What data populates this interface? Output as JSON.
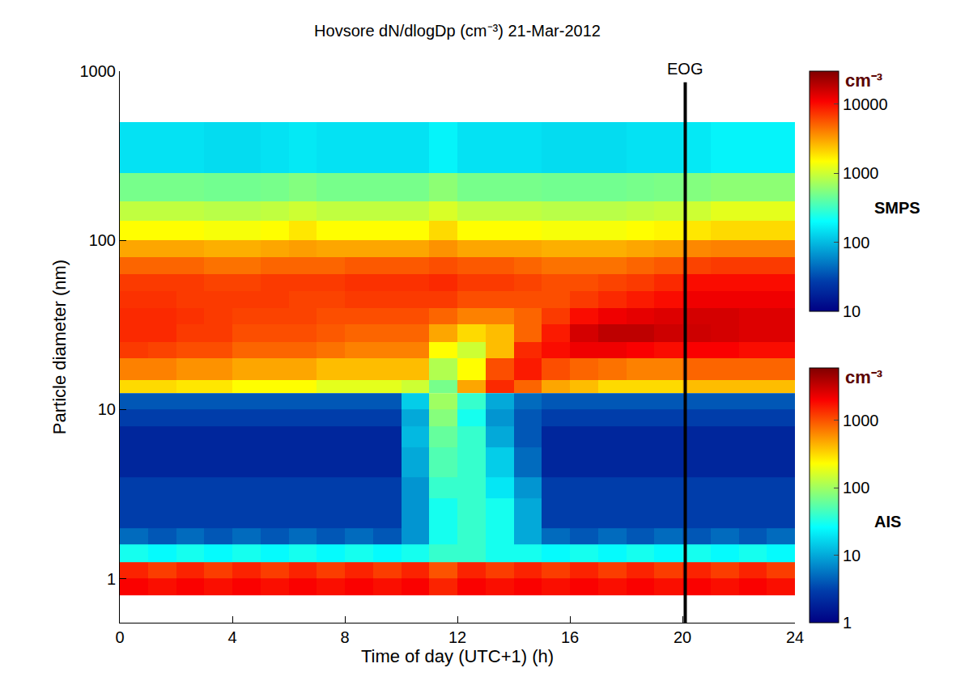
{
  "chart_data": {
    "type": "heatmap",
    "title": "Hovsore dN/dlogDp (cm⁻³) 21-Mar-2012",
    "x_label": "Time of day (UTC+1) (h)",
    "y_label": "Particle diameter (nm)",
    "xlim": [
      0,
      24
    ],
    "xticks": [
      0,
      4,
      8,
      12,
      16,
      20,
      24
    ],
    "ylim": [
      0.55,
      1000
    ],
    "yticks": [
      1,
      10,
      100,
      1000
    ],
    "log": "y",
    "grid": false,
    "annotations": [
      {
        "text": "EOG",
        "x": 20.1
      }
    ],
    "series": [
      {
        "name": "SMPS",
        "colorbar_title": "cm⁻³",
        "clim": [
          10,
          30000
        ],
        "cticks": [
          10,
          100,
          1000,
          10000
        ],
        "x_edges": [
          0,
          1,
          2,
          3,
          4,
          5,
          6,
          7,
          8,
          9,
          10,
          11,
          12,
          13,
          14,
          15,
          16,
          17,
          18,
          19,
          20,
          21,
          22,
          23,
          24
        ],
        "y_edges": [
          12.5,
          15,
          20,
          25,
          32,
          40,
          50,
          63,
          80,
          100,
          130,
          170,
          250,
          500
        ],
        "z": [
          [
            2000,
            2000,
            1800,
            1800,
            1500,
            1500,
            1500,
            1200,
            1200,
            1200,
            1000,
            500,
            3000,
            8000,
            5000,
            3000,
            2500,
            2000,
            2000,
            2000,
            2500,
            2500,
            2500,
            2500
          ],
          [
            4000,
            4000,
            3500,
            3500,
            3000,
            3000,
            3000,
            2500,
            2500,
            2500,
            2500,
            800,
            1500,
            6000,
            9000,
            6000,
            5000,
            4500,
            4000,
            4000,
            5000,
            5000,
            5000,
            5000
          ],
          [
            7000,
            6500,
            6000,
            6000,
            5000,
            5000,
            5000,
            4500,
            4000,
            4000,
            4000,
            1500,
            1000,
            2500,
            8000,
            10000,
            12000,
            12000,
            11000,
            10000,
            11000,
            11000,
            10000,
            10000
          ],
          [
            8000,
            8000,
            7000,
            7000,
            6000,
            6000,
            6000,
            5500,
            5000,
            5000,
            5000,
            3000,
            2000,
            2500,
            5000,
            9000,
            15000,
            18000,
            18000,
            16000,
            16000,
            15000,
            14000,
            14000
          ],
          [
            8000,
            8000,
            7500,
            7000,
            6500,
            6500,
            6500,
            6000,
            6000,
            6000,
            6000,
            5000,
            4000,
            4000,
            5000,
            7000,
            10000,
            12000,
            13000,
            14000,
            15000,
            15000,
            14000,
            14000
          ],
          [
            7500,
            7500,
            7000,
            7000,
            7000,
            7000,
            6500,
            6500,
            7000,
            7000,
            7000,
            7000,
            6000,
            6000,
            6000,
            6000,
            7000,
            8000,
            9000,
            10000,
            12000,
            12000,
            12000,
            12000
          ],
          [
            7000,
            7000,
            7000,
            6500,
            6500,
            7000,
            7000,
            7000,
            7500,
            7500,
            7500,
            8000,
            7000,
            7000,
            6500,
            6000,
            6000,
            6500,
            7000,
            8000,
            10000,
            10000,
            10000,
            10000
          ],
          [
            5000,
            5000,
            5000,
            4500,
            4500,
            5000,
            5000,
            5000,
            5500,
            5500,
            5500,
            6000,
            5500,
            5500,
            5000,
            4500,
            4500,
            4500,
            5000,
            5500,
            6500,
            7000,
            7000,
            7000
          ],
          [
            3000,
            3000,
            3000,
            2800,
            2800,
            3000,
            3200,
            3000,
            3000,
            3000,
            3000,
            3500,
            3000,
            3000,
            3000,
            2800,
            2800,
            2800,
            3000,
            3200,
            3800,
            4000,
            4000,
            4000
          ],
          [
            1500,
            1500,
            1500,
            1400,
            1400,
            1500,
            1800,
            1500,
            1500,
            1500,
            1500,
            2000,
            1500,
            1500,
            1500,
            1400,
            1400,
            1400,
            1500,
            1600,
            1800,
            2000,
            2000,
            2000
          ],
          [
            900,
            900,
            900,
            850,
            850,
            900,
            1000,
            900,
            900,
            900,
            900,
            1100,
            900,
            900,
            900,
            850,
            850,
            850,
            900,
            950,
            1000,
            1200,
            1200,
            1200
          ],
          [
            500,
            500,
            500,
            480,
            480,
            500,
            550,
            500,
            500,
            500,
            500,
            600,
            500,
            500,
            500,
            480,
            480,
            480,
            500,
            520,
            550,
            600,
            600,
            600
          ],
          [
            150,
            150,
            150,
            140,
            140,
            150,
            160,
            150,
            150,
            150,
            150,
            180,
            150,
            150,
            150,
            140,
            140,
            140,
            150,
            150,
            160,
            180,
            180,
            180
          ]
        ]
      },
      {
        "name": "AIS",
        "colorbar_title": "cm⁻³",
        "clim": [
          1,
          6000
        ],
        "cticks": [
          1,
          10,
          100,
          1000
        ],
        "x_edges": [
          0,
          1,
          2,
          3,
          4,
          5,
          6,
          7,
          8,
          9,
          10,
          11,
          12,
          13,
          14,
          15,
          16,
          17,
          18,
          19,
          20,
          21,
          22,
          23,
          24
        ],
        "y_edges": [
          0.8,
          1.0,
          1.25,
          1.6,
          2,
          3,
          4,
          6,
          8,
          10,
          12.5
        ],
        "z": [
          [
            2000,
            1800,
            2000,
            1800,
            2000,
            1800,
            2000,
            1800,
            2000,
            1800,
            2000,
            1500,
            2000,
            1800,
            2000,
            1800,
            2000,
            1800,
            2000,
            1800,
            2000,
            1800,
            2000,
            1800
          ],
          [
            1500,
            1200,
            1500,
            1200,
            1500,
            1200,
            1500,
            1200,
            1500,
            1200,
            1500,
            1000,
            1500,
            1200,
            1500,
            1200,
            1500,
            1200,
            1500,
            1200,
            1500,
            1200,
            1500,
            1200
          ],
          [
            30,
            25,
            30,
            25,
            30,
            25,
            30,
            25,
            30,
            25,
            30,
            40,
            40,
            30,
            30,
            25,
            30,
            25,
            30,
            25,
            30,
            25,
            30,
            25
          ],
          [
            5,
            4,
            5,
            4,
            5,
            4,
            5,
            4,
            5,
            4,
            8,
            30,
            40,
            30,
            10,
            5,
            4,
            5,
            4,
            5,
            4,
            5,
            4,
            5
          ],
          [
            3,
            3,
            3,
            3,
            3,
            3,
            3,
            3,
            3,
            3,
            8,
            30,
            40,
            30,
            10,
            3,
            3,
            3,
            3,
            3,
            3,
            3,
            3,
            3
          ],
          [
            3,
            3,
            3,
            3,
            3,
            3,
            3,
            3,
            3,
            3,
            8,
            40,
            40,
            20,
            8,
            3,
            3,
            3,
            3,
            3,
            3,
            3,
            3,
            3
          ],
          [
            2,
            2,
            2,
            2,
            2,
            2,
            2,
            2,
            2,
            2,
            10,
            50,
            40,
            15,
            5,
            2,
            2,
            2,
            2,
            2,
            2,
            2,
            2,
            2
          ],
          [
            2,
            2,
            2,
            2,
            2,
            2,
            2,
            2,
            2,
            2,
            12,
            60,
            40,
            10,
            4,
            2,
            2,
            2,
            2,
            2,
            2,
            2,
            2,
            2
          ],
          [
            3,
            3,
            3,
            3,
            3,
            3,
            3,
            3,
            3,
            3,
            10,
            80,
            30,
            8,
            4,
            3,
            3,
            3,
            3,
            3,
            3,
            3,
            3,
            3
          ],
          [
            4,
            4,
            4,
            4,
            4,
            4,
            4,
            4,
            4,
            4,
            15,
            100,
            40,
            10,
            5,
            4,
            4,
            4,
            4,
            4,
            4,
            4,
            4,
            4
          ]
        ]
      }
    ]
  }
}
